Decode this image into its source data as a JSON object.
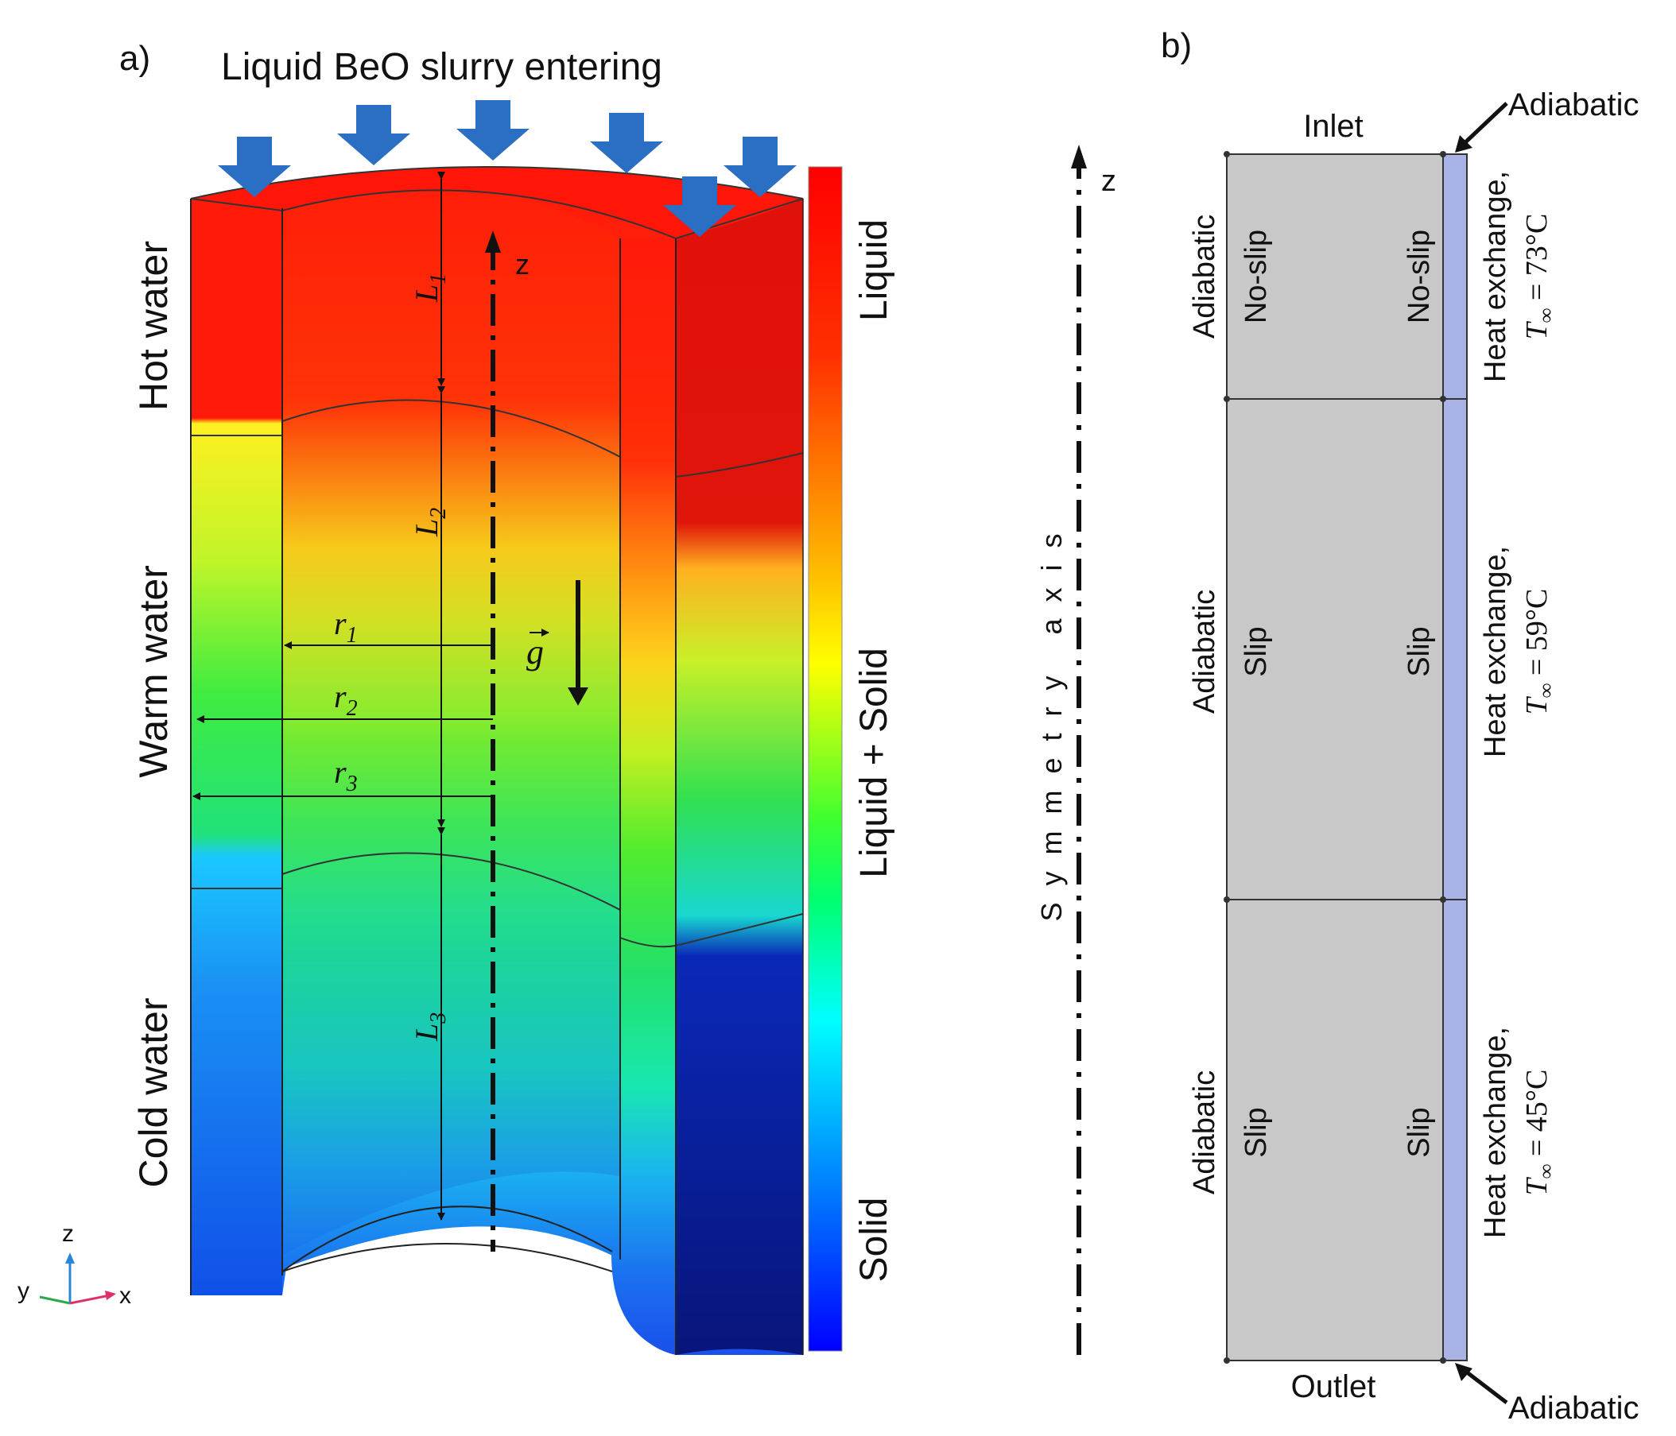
{
  "panel_a": {
    "label": "a)",
    "header": "Liquid BeO slurry entering",
    "zones": [
      "Hot water",
      "Warm water",
      "Cold water"
    ],
    "dims": {
      "L1": {
        "base": "L",
        "sub": "1"
      },
      "L2": {
        "base": "L",
        "sub": "2"
      },
      "L3": {
        "base": "L",
        "sub": "3"
      },
      "r1": {
        "base": "r",
        "sub": "1"
      },
      "r2": {
        "base": "r",
        "sub": "2"
      },
      "r3": {
        "base": "r",
        "sub": "3"
      }
    },
    "z_axis_label": "z",
    "gravity_label": "g",
    "colorbar_labels": [
      "Liquid",
      "Liquid + Solid",
      "Solid"
    ],
    "triad": {
      "z": "z",
      "y": "y",
      "x": "x"
    },
    "colors": {
      "liquid": "#ff1a0a",
      "mushy": "#1de85a",
      "solid": "#0a2cf0",
      "arrow": "#2a6fc4"
    }
  },
  "panel_b": {
    "label": "b)",
    "inlet": "Inlet",
    "outlet": "Outlet",
    "adiabatic_top": "Adiabatic",
    "adiabatic_bottom": "Adiabatic",
    "axis_label": "z",
    "symmetry_label": "Symmetry axis",
    "sections": [
      {
        "left_bc": "Adiabatic",
        "inner_bc": "No-slip",
        "outer_bc": "No-slip",
        "heat_exchange": "Heat exchange,",
        "temperature_symbol": "T",
        "temperature_sub": "∞",
        "temperature_value": " = 73°C"
      },
      {
        "left_bc": "Adiabatic",
        "inner_bc": "Slip",
        "outer_bc": "Slip",
        "heat_exchange": "Heat exchange,",
        "temperature_symbol": "T",
        "temperature_sub": "∞",
        "temperature_value": " = 59°C"
      },
      {
        "left_bc": "Adiabatic",
        "inner_bc": "Slip",
        "outer_bc": "Slip",
        "heat_exchange": "Heat exchange,",
        "temperature_symbol": "T",
        "temperature_sub": "∞",
        "temperature_value": " = 45°C"
      }
    ],
    "colors": {
      "domain": "#c8c8c8",
      "wall": "#a9b3e6"
    }
  }
}
